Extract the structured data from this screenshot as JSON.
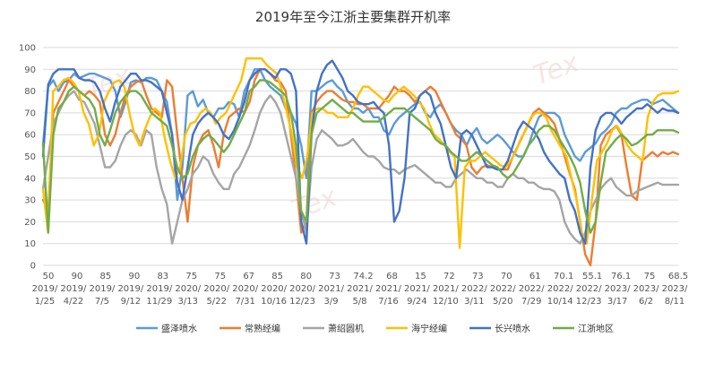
{
  "chart_data": {
    "type": "line",
    "title": "2019年至今江浙主要集群开机率",
    "ylim": [
      0,
      100
    ],
    "yticks": [
      "0",
      "10",
      "20",
      "30",
      "40",
      "50",
      "60",
      "70",
      "80",
      "90",
      "100"
    ],
    "grid": true,
    "legend_position": "bottom",
    "value_labels": [
      "50",
      "90",
      "85",
      "90",
      "83",
      "75",
      "75",
      "67",
      "85",
      "80",
      "73",
      "74.2",
      "68",
      "15",
      "72",
      "73",
      "70",
      "61",
      "70.1",
      "55.1",
      "76.1",
      "75",
      "68.5"
    ],
    "date_labels": [
      [
        "2019/",
        "1/25"
      ],
      [
        "2019/",
        "4/22"
      ],
      [
        "2019/",
        "7/5"
      ],
      [
        "2019/",
        "9/12"
      ],
      [
        "2019/",
        "11/29"
      ],
      [
        "2020/",
        "3/13"
      ],
      [
        "2020/",
        "5/22"
      ],
      [
        "2020/",
        "7/31"
      ],
      [
        "2020/",
        "10/16"
      ],
      [
        "2020/",
        "12/23"
      ],
      [
        "2021/",
        "3/9"
      ],
      [
        "2021/",
        "5/8"
      ],
      [
        "2021/",
        "7/16"
      ],
      [
        "2021/",
        "9/24"
      ],
      [
        "2021/",
        "12/10"
      ],
      [
        "2022/",
        "3/11"
      ],
      [
        "2022/",
        "5/20"
      ],
      [
        "2022/",
        "7/29"
      ],
      [
        "2022/",
        "10/14"
      ],
      [
        "2022/",
        "12/23"
      ],
      [
        "2023/",
        "3/17"
      ],
      [
        "2023/",
        "6/2"
      ],
      [
        "2023/",
        "8/11"
      ]
    ],
    "series": [
      {
        "name": "盛泽喷水",
        "color": "#5b9bd5",
        "values": [
          55,
          82,
          85,
          80,
          84,
          85,
          88,
          86,
          87,
          88,
          88,
          87,
          86,
          85,
          80,
          68,
          75,
          84,
          85,
          84,
          86,
          86,
          85,
          80,
          75,
          60,
          30,
          45,
          78,
          80,
          73,
          76,
          70,
          68,
          72,
          72,
          75,
          74,
          68,
          80,
          85,
          90,
          90,
          85,
          82,
          80,
          78,
          72,
          70,
          65,
          55,
          40,
          80,
          80,
          82,
          84,
          85,
          82,
          80,
          75,
          72,
          72,
          70,
          72,
          68,
          68,
          62,
          60,
          65,
          68,
          70,
          72,
          74,
          75,
          70,
          68,
          72,
          74,
          70,
          65,
          62,
          60,
          55,
          60,
          63,
          58,
          56,
          58,
          60,
          58,
          55,
          52,
          50,
          50,
          55,
          62,
          68,
          70,
          70,
          70,
          68,
          60,
          55,
          50,
          48,
          52,
          54,
          56,
          60,
          62,
          65,
          70,
          72,
          72,
          74,
          75,
          76,
          76,
          74,
          75,
          76,
          74,
          72,
          70
        ]
      },
      {
        "name": "常熟经编",
        "color": "#ed7d31",
        "values": [
          30,
          25,
          70,
          75,
          80,
          85,
          82,
          80,
          78,
          80,
          78,
          75,
          60,
          55,
          60,
          70,
          78,
          82,
          84,
          85,
          78,
          72,
          70,
          68,
          85,
          82,
          60,
          40,
          20,
          45,
          55,
          60,
          62,
          55,
          45,
          60,
          68,
          70,
          72,
          70,
          75,
          85,
          90,
          90,
          88,
          85,
          84,
          80,
          60,
          40,
          15,
          20,
          70,
          75,
          78,
          80,
          80,
          78,
          76,
          75,
          75,
          74,
          74,
          72,
          72,
          72,
          75,
          78,
          82,
          80,
          80,
          78,
          75,
          78,
          80,
          82,
          80,
          75,
          70,
          65,
          60,
          58,
          55,
          45,
          42,
          45,
          46,
          45,
          44,
          44,
          44,
          50,
          55,
          60,
          65,
          70,
          72,
          70,
          68,
          65,
          58,
          50,
          42,
          35,
          20,
          5,
          0,
          20,
          55,
          60,
          62,
          64,
          60,
          45,
          32,
          30,
          48,
          50,
          52,
          50,
          52,
          51,
          52,
          51
        ]
      },
      {
        "name": "萧绍圆机",
        "color": "#a5a5a5",
        "values": [
          35,
          50,
          65,
          70,
          75,
          78,
          80,
          76,
          75,
          70,
          65,
          55,
          45,
          45,
          48,
          55,
          60,
          62,
          60,
          55,
          62,
          60,
          45,
          35,
          28,
          10,
          20,
          30,
          35,
          42,
          45,
          50,
          48,
          42,
          38,
          35,
          35,
          42,
          45,
          50,
          55,
          62,
          70,
          75,
          78,
          75,
          70,
          60,
          50,
          40,
          25,
          15,
          45,
          58,
          62,
          60,
          58,
          55,
          55,
          56,
          58,
          55,
          52,
          50,
          50,
          48,
          45,
          44,
          44,
          42,
          44,
          45,
          46,
          44,
          42,
          40,
          38,
          38,
          36,
          36,
          40,
          42,
          44,
          42,
          40,
          40,
          38,
          38,
          36,
          36,
          40,
          42,
          40,
          40,
          38,
          38,
          36,
          35,
          35,
          34,
          30,
          20,
          15,
          12,
          10,
          15,
          25,
          30,
          35,
          38,
          40,
          36,
          34,
          32,
          32,
          34,
          35,
          36,
          37,
          38,
          37,
          37,
          37,
          37
        ]
      },
      {
        "name": "海宁经编",
        "color": "#ffc000",
        "values": [
          35,
          15,
          80,
          82,
          85,
          86,
          84,
          80,
          70,
          65,
          55,
          60,
          75,
          80,
          84,
          85,
          82,
          70,
          60,
          55,
          62,
          68,
          72,
          70,
          58,
          48,
          40,
          45,
          60,
          65,
          66,
          70,
          72,
          70,
          65,
          68,
          70,
          75,
          80,
          85,
          95,
          95,
          95,
          95,
          92,
          90,
          88,
          80,
          70,
          60,
          45,
          40,
          50,
          70,
          72,
          72,
          70,
          70,
          68,
          68,
          68,
          72,
          78,
          82,
          82,
          80,
          78,
          76,
          75,
          78,
          80,
          82,
          80,
          78,
          75,
          72,
          65,
          60,
          58,
          55,
          52,
          50,
          8,
          45,
          48,
          48,
          50,
          52,
          50,
          48,
          46,
          45,
          48,
          52,
          58,
          62,
          68,
          70,
          70,
          68,
          62,
          58,
          54,
          50,
          40,
          30,
          15,
          10,
          30,
          48,
          52,
          56,
          62,
          64,
          60,
          55,
          52,
          50,
          48,
          68,
          75,
          78,
          79,
          79,
          79,
          80
        ]
      },
      {
        "name": "长兴喷水",
        "color": "#4472c4",
        "values": [
          50,
          83,
          88,
          90,
          90,
          90,
          90,
          86,
          85,
          85,
          84,
          80,
          72,
          66,
          75,
          82,
          85,
          88,
          88,
          85,
          85,
          84,
          82,
          80,
          70,
          60,
          38,
          30,
          45,
          60,
          65,
          68,
          70,
          68,
          65,
          60,
          58,
          62,
          68,
          75,
          85,
          88,
          90,
          90,
          88,
          86,
          90,
          90,
          88,
          80,
          20,
          10,
          60,
          80,
          88,
          92,
          94,
          90,
          86,
          80,
          78,
          75,
          74,
          74,
          75,
          72,
          70,
          55,
          20,
          25,
          40,
          70,
          72,
          78,
          80,
          78,
          70,
          65,
          55,
          45,
          40,
          60,
          62,
          60,
          55,
          50,
          45,
          45,
          44,
          44,
          48,
          55,
          62,
          66,
          64,
          62,
          58,
          52,
          48,
          45,
          42,
          40,
          30,
          25,
          15,
          10,
          45,
          62,
          68,
          70,
          70,
          68,
          65,
          68,
          70,
          72,
          72,
          74,
          72,
          70,
          72,
          71,
          71,
          70
        ]
      },
      {
        "name": "江浙地区",
        "color": "#70ad47",
        "values": [
          56,
          15,
          60,
          72,
          75,
          80,
          82,
          80,
          78,
          76,
          72,
          60,
          55,
          62,
          70,
          75,
          78,
          80,
          80,
          78,
          74,
          70,
          68,
          66,
          64,
          55,
          45,
          40,
          42,
          50,
          55,
          58,
          60,
          58,
          55,
          52,
          55,
          60,
          65,
          70,
          80,
          82,
          85,
          85,
          84,
          82,
          80,
          78,
          70,
          55,
          25,
          20,
          60,
          70,
          72,
          74,
          76,
          74,
          72,
          70,
          70,
          68,
          66,
          66,
          66,
          66,
          68,
          70,
          72,
          72,
          72,
          70,
          68,
          66,
          64,
          62,
          58,
          56,
          55,
          52,
          50,
          48,
          48,
          50,
          52,
          50,
          48,
          46,
          45,
          42,
          40,
          42,
          46,
          50,
          55,
          58,
          62,
          64,
          64,
          62,
          58,
          54,
          50,
          45,
          38,
          25,
          15,
          20,
          38,
          52,
          55,
          58,
          60,
          58,
          55,
          56,
          58,
          60,
          60,
          62,
          62,
          62,
          62,
          61
        ]
      }
    ]
  }
}
